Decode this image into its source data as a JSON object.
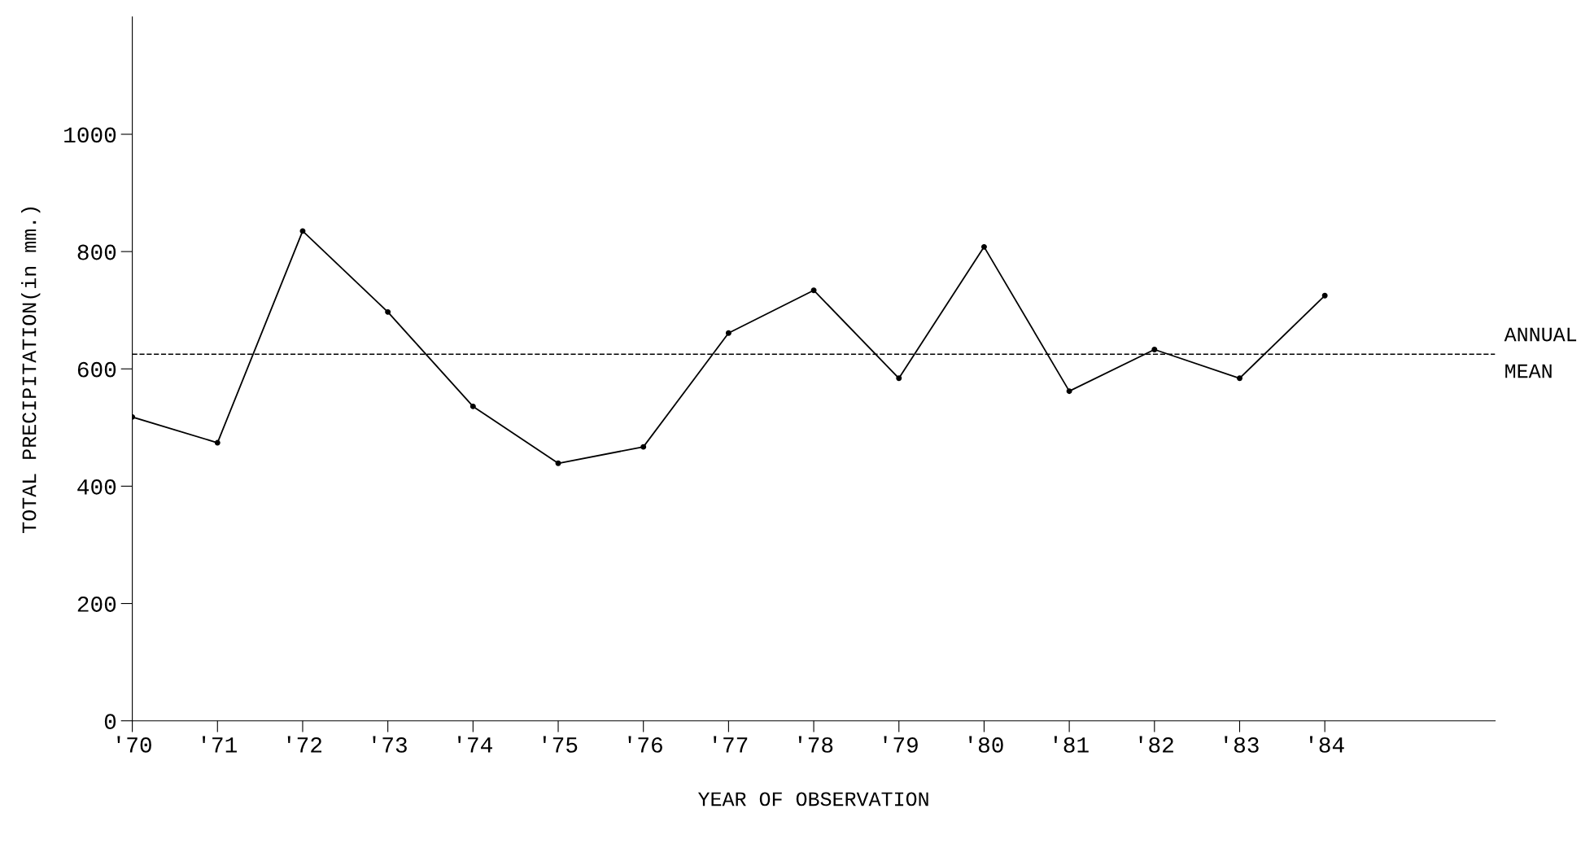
{
  "chart_data": {
    "type": "line",
    "xlabel": "YEAR OF OBSERVATION",
    "ylabel": "TOTAL PRECIPITATION(in mm.)",
    "x": [
      1970,
      1971,
      1972,
      1973,
      1974,
      1975,
      1976,
      1977,
      1978,
      1979,
      1980,
      1981,
      1982,
      1983,
      1984
    ],
    "series": [
      {
        "color": "#000000",
        "values": [
          518,
          474,
          835,
          697,
          536,
          439,
          467,
          661,
          734,
          584,
          808,
          562,
          633,
          584,
          725
        ]
      }
    ],
    "xlim": [
      1970,
      1986
    ],
    "ylim": [
      0,
      1200
    ],
    "xticks": [
      {
        "value": 1970,
        "label": "'70"
      },
      {
        "value": 1971,
        "label": "'71"
      },
      {
        "value": 1972,
        "label": "'72"
      },
      {
        "value": 1973,
        "label": "'73"
      },
      {
        "value": 1974,
        "label": "'74"
      },
      {
        "value": 1975,
        "label": "'75"
      },
      {
        "value": 1976,
        "label": "'76"
      },
      {
        "value": 1977,
        "label": "'77"
      },
      {
        "value": 1978,
        "label": "'78"
      },
      {
        "value": 1979,
        "label": "'79"
      },
      {
        "value": 1980,
        "label": "'80"
      },
      {
        "value": 1981,
        "label": "'81"
      },
      {
        "value": 1982,
        "label": "'82"
      },
      {
        "value": 1983,
        "label": "'83"
      },
      {
        "value": 1984,
        "label": "'84"
      }
    ],
    "yticks": [
      0,
      200,
      400,
      600,
      800,
      1000
    ],
    "ref_lines": [
      {
        "axis": "y",
        "value": 625,
        "label": "ANNUAL\nMEAN",
        "color": "#000000",
        "line_style": "dashed"
      }
    ],
    "grid": false,
    "legend": false,
    "marker": "circle",
    "line_style": "solid"
  }
}
